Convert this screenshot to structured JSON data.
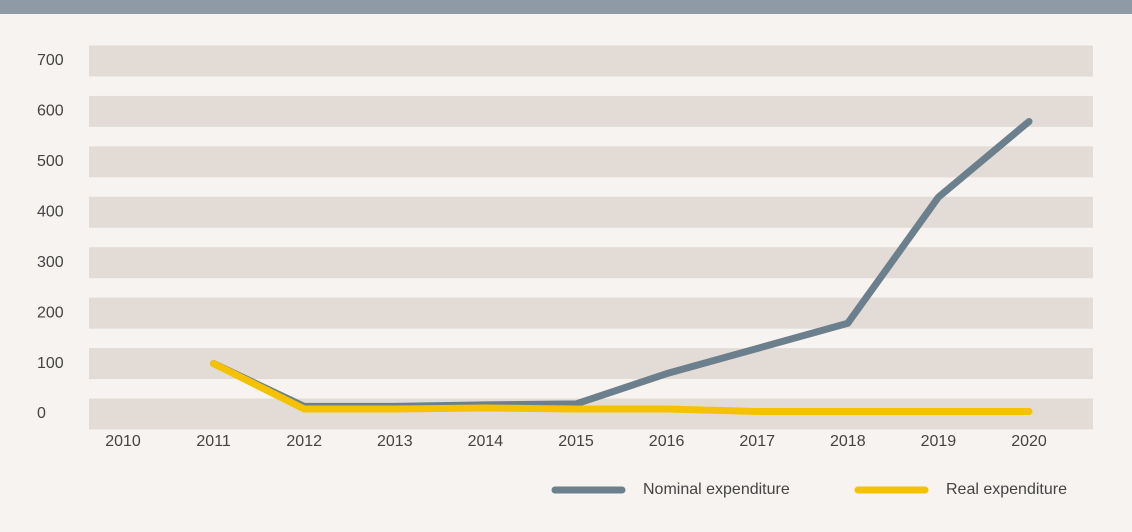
{
  "chart_data": {
    "type": "line",
    "x": [
      "2010",
      "2011",
      "2012",
      "2013",
      "2014",
      "2015",
      "2016",
      "2017",
      "2018",
      "2019",
      "2020"
    ],
    "series": [
      {
        "name": "Nominal expenditure",
        "color": "#6b7f8c",
        "values": [
          null,
          100,
          15,
          15,
          18,
          20,
          80,
          130,
          180,
          430,
          580
        ]
      },
      {
        "name": "Real expenditure",
        "color": "#f5c200",
        "values": [
          null,
          100,
          10,
          10,
          12,
          10,
          10,
          5,
          5,
          5,
          5
        ]
      }
    ],
    "ylim": [
      0,
      700
    ],
    "yticks": [
      0,
      100,
      200,
      300,
      400,
      500,
      600,
      700
    ],
    "grid": true,
    "legend": "bottom-right"
  }
}
